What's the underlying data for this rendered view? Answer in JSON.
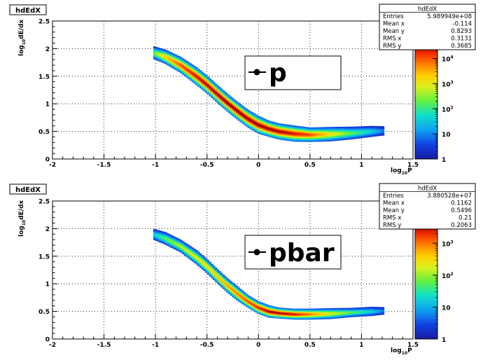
{
  "chart_data": [
    {
      "type": "heatmap",
      "title": "hdEdX",
      "xlabel_main": "log",
      "xlabel_sub": "10",
      "xlabel_end": "P",
      "ylabel_main": "log",
      "ylabel_sub": "10",
      "ylabel_end": "dE/dx",
      "xlim": [
        -2,
        1.5
      ],
      "ylim": [
        0,
        2.5
      ],
      "xticks": [
        "-2",
        "-1.5",
        "-1",
        "-0.5",
        "0",
        "0.5",
        "1",
        "1.5"
      ],
      "xtick_values": [
        -2,
        -1.5,
        -1,
        -0.5,
        0,
        0.5,
        1,
        1.5
      ],
      "yticks": [
        "0",
        "0.5",
        "1",
        "1.5",
        "2",
        "2.5"
      ],
      "ytick_values": [
        0,
        0.5,
        1,
        1.5,
        2,
        2.5
      ],
      "grid": true,
      "legend": {
        "label": "p",
        "placement": "top-right"
      },
      "stats": {
        "title": "hdEdX",
        "rows": [
          {
            "label": "Entries",
            "value": "5.989949e+08"
          },
          {
            "label": "Mean x",
            "value": "-0.114"
          },
          {
            "label": "Mean y",
            "value": "0.8293"
          },
          {
            "label": "RMS x",
            "value": "0.3131"
          },
          {
            "label": "RMS y",
            "value": "0.3685"
          }
        ]
      },
      "colorbar": {
        "scale": "log",
        "ticks": [
          {
            "base": "1",
            "exp": ""
          },
          {
            "base": "10",
            "exp": ""
          },
          {
            "base": "10",
            "exp": "2"
          },
          {
            "base": "10",
            "exp": "3"
          },
          {
            "base": "10",
            "exp": "4"
          }
        ],
        "tick_log": [
          0,
          1,
          2,
          3,
          4
        ],
        "log_max": 4.6
      },
      "band": {
        "x_start": -1.02,
        "x_end": 1.22,
        "ridge_x": [
          -1.02,
          -0.9,
          -0.75,
          -0.6,
          -0.5,
          -0.4,
          -0.3,
          -0.2,
          -0.1,
          0.0,
          0.1,
          0.2,
          0.35,
          0.5,
          0.7,
          0.9,
          1.1,
          1.22
        ],
        "ridge_y": [
          1.93,
          1.85,
          1.7,
          1.5,
          1.35,
          1.18,
          1.02,
          0.87,
          0.73,
          0.62,
          0.55,
          0.5,
          0.46,
          0.44,
          0.45,
          0.47,
          0.5,
          0.51
        ],
        "half_width": [
          0.07,
          0.08,
          0.09,
          0.1,
          0.1,
          0.1,
          0.1,
          0.1,
          0.1,
          0.1,
          0.09,
          0.09,
          0.09,
          0.08,
          0.08,
          0.07,
          0.06,
          0.05
        ],
        "intensity": [
          0.45,
          0.7,
          0.85,
          0.92,
          0.95,
          0.96,
          0.97,
          0.97,
          0.97,
          0.96,
          0.96,
          0.95,
          0.92,
          0.85,
          0.65,
          0.45,
          0.3,
          0.15
        ]
      }
    },
    {
      "type": "heatmap",
      "title": "hdEdX",
      "xlabel_main": "log",
      "xlabel_sub": "10",
      "xlabel_end": "P",
      "ylabel_main": "log",
      "ylabel_sub": "10",
      "ylabel_end": "dE/dx",
      "xlim": [
        -2,
        1.5
      ],
      "ylim": [
        0,
        2.5
      ],
      "xticks": [
        "-2",
        "-1.5",
        "-1",
        "-0.5",
        "0",
        "0.5",
        "1",
        "1.5"
      ],
      "xtick_values": [
        -2,
        -1.5,
        -1,
        -0.5,
        0,
        0.5,
        1,
        1.5
      ],
      "yticks": [
        "0",
        "0.5",
        "1",
        "1.5",
        "2",
        "2.5"
      ],
      "ytick_values": [
        0,
        0.5,
        1,
        1.5,
        2,
        2.5
      ],
      "grid": true,
      "legend": {
        "label": "pbar",
        "placement": "top-right"
      },
      "stats": {
        "title": "hdEdX",
        "rows": [
          {
            "label": "Entries",
            "value": "3.880528e+07"
          },
          {
            "label": "Mean x",
            "value": "0.1162"
          },
          {
            "label": "Mean y",
            "value": "0.5496"
          },
          {
            "label": "RMS x",
            "value": "0.21"
          },
          {
            "label": "RMS y",
            "value": "0.2063"
          }
        ]
      },
      "colorbar": {
        "scale": "log",
        "ticks": [
          {
            "base": "1",
            "exp": ""
          },
          {
            "base": "10",
            "exp": ""
          },
          {
            "base": "10",
            "exp": "2"
          },
          {
            "base": "10",
            "exp": "3"
          }
        ],
        "tick_log": [
          0,
          1,
          2,
          3
        ],
        "log_max": 3.6
      },
      "band": {
        "x_start": -1.02,
        "x_end": 1.22,
        "ridge_x": [
          -1.02,
          -0.9,
          -0.75,
          -0.6,
          -0.5,
          -0.4,
          -0.3,
          -0.2,
          -0.1,
          0.0,
          0.1,
          0.2,
          0.35,
          0.5,
          0.7,
          0.9,
          1.1,
          1.22
        ],
        "ridge_y": [
          1.9,
          1.82,
          1.68,
          1.48,
          1.32,
          1.14,
          0.97,
          0.82,
          0.68,
          0.57,
          0.5,
          0.47,
          0.45,
          0.45,
          0.46,
          0.48,
          0.5,
          0.51
        ],
        "half_width": [
          0.06,
          0.07,
          0.07,
          0.08,
          0.08,
          0.08,
          0.08,
          0.08,
          0.07,
          0.07,
          0.07,
          0.06,
          0.06,
          0.06,
          0.06,
          0.05,
          0.05,
          0.04
        ],
        "intensity": [
          0.3,
          0.45,
          0.55,
          0.6,
          0.65,
          0.7,
          0.75,
          0.8,
          0.85,
          0.9,
          0.95,
          0.96,
          0.92,
          0.8,
          0.6,
          0.45,
          0.3,
          0.15
        ]
      }
    }
  ]
}
